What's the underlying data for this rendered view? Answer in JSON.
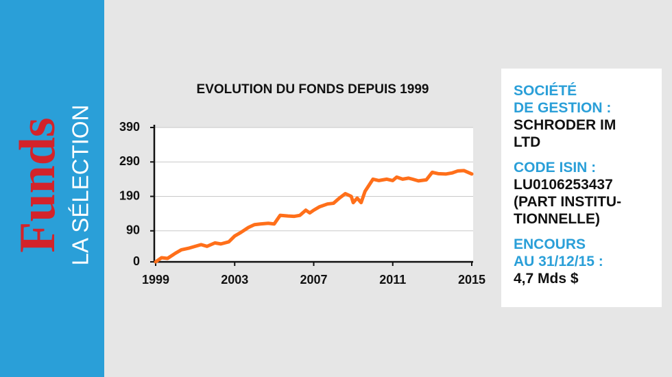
{
  "sidebar": {
    "brand": "Funds",
    "subtitle": "LA SÉLECTION"
  },
  "chart_data": {
    "type": "line",
    "title": "EVOLUTION DU FONDS DEPUIS 1999",
    "x": [
      1999.0,
      1999.3,
      1999.6,
      2000.0,
      2000.3,
      2000.7,
      2001.0,
      2001.3,
      2001.6,
      2002.0,
      2002.3,
      2002.7,
      2003.0,
      2003.3,
      2003.7,
      2004.0,
      2004.3,
      2004.7,
      2005.0,
      2005.3,
      2005.7,
      2006.0,
      2006.3,
      2006.6,
      2006.8,
      2007.0,
      2007.3,
      2007.7,
      2008.0,
      2008.3,
      2008.6,
      2008.9,
      2009.0,
      2009.2,
      2009.4,
      2009.6,
      2010.0,
      2010.3,
      2010.7,
      2011.0,
      2011.2,
      2011.5,
      2011.8,
      2012.0,
      2012.3,
      2012.7,
      2013.0,
      2013.3,
      2013.7,
      2014.0,
      2014.3,
      2014.6,
      2015.0
    ],
    "series": [
      {
        "color": "#ff6f1a",
        "values": [
          0,
          12,
          10,
          25,
          35,
          40,
          45,
          50,
          45,
          55,
          52,
          58,
          75,
          85,
          100,
          108,
          110,
          112,
          110,
          135,
          133,
          132,
          135,
          150,
          142,
          150,
          160,
          168,
          170,
          185,
          198,
          190,
          172,
          185,
          172,
          205,
          240,
          236,
          240,
          236,
          246,
          240,
          243,
          240,
          235,
          238,
          260,
          256,
          255,
          258,
          264,
          265,
          255
        ]
      }
    ],
    "xlim": [
      1999,
      2015
    ],
    "xticks": [
      1999,
      2003,
      2007,
      2011,
      2015
    ],
    "ylim": [
      0,
      390
    ],
    "yticks": [
      0,
      90,
      190,
      290,
      390
    ],
    "grid": true
  },
  "info": [
    {
      "label": [
        "SOCIÉTÉ",
        "DE GESTION :"
      ],
      "value": [
        "SCHRODER IM",
        "LTD"
      ]
    },
    {
      "label": [
        "CODE ISIN :"
      ],
      "value": [
        "LU0106253437",
        "(PART INSTITU-",
        "TIONNELLE)"
      ]
    },
    {
      "label": [
        "ENCOURS",
        "AU 31/12/15 :"
      ],
      "value": [
        "4,7 Mds $"
      ]
    }
  ]
}
